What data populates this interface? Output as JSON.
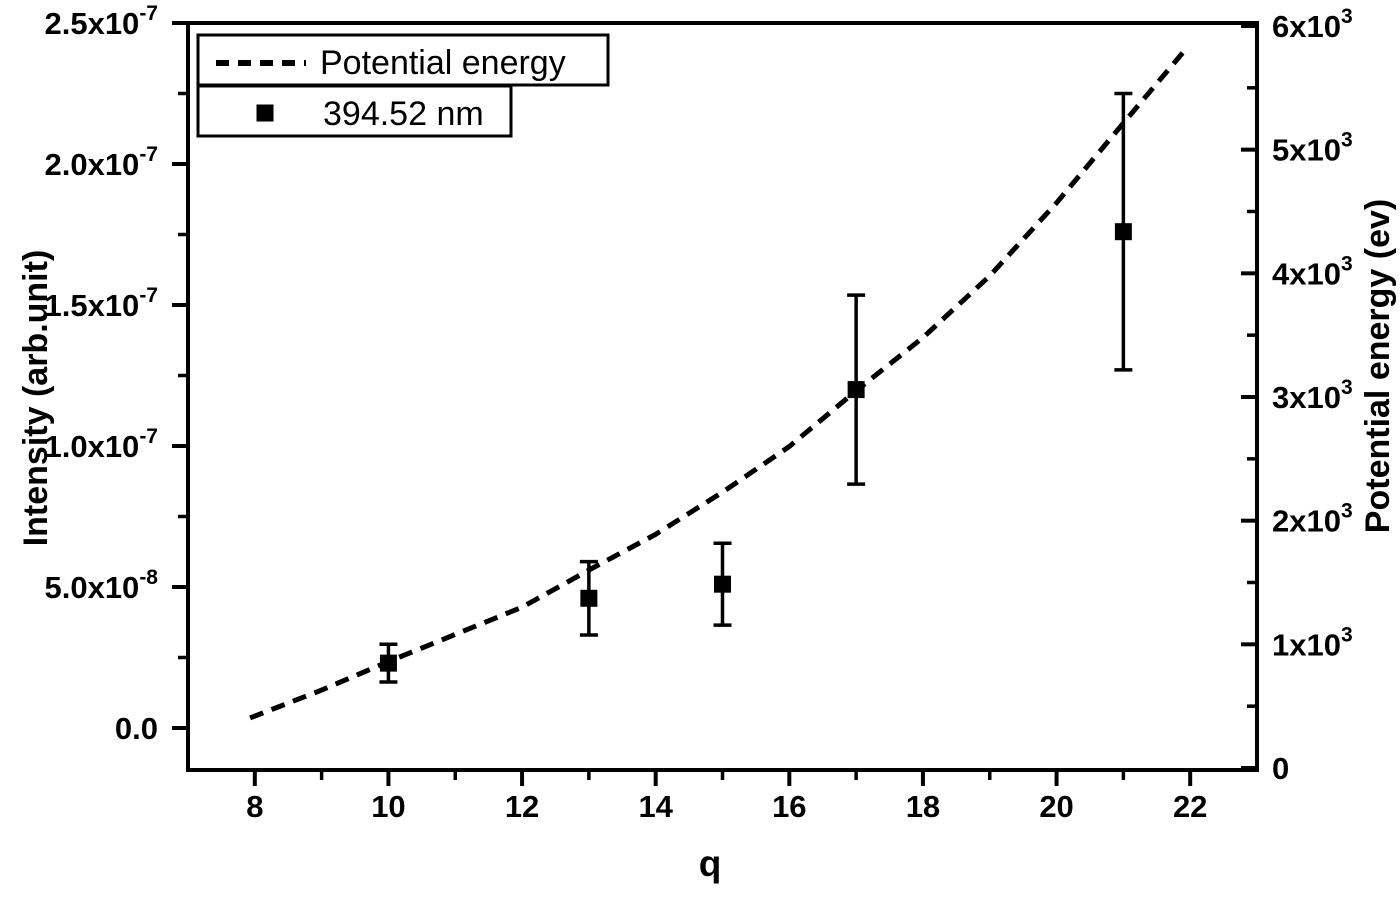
{
  "figure": {
    "background": "#ffffff",
    "ink": "#000000"
  },
  "legend": {
    "position": "top-left",
    "entries": [
      {
        "sample": "dashed-line",
        "label": "Potential energy"
      },
      {
        "sample": "filled-square",
        "label": "394.52 nm"
      }
    ]
  },
  "chart_data": {
    "type": "line+scatter",
    "title": "",
    "xlabel": "q",
    "ylabel_left": "Intensity (arb.unit)",
    "ylabel_right": "Potential energy (ev)",
    "xlim": [
      7,
      23
    ],
    "ylim_left": [
      -1.5e-08,
      2.5e-07
    ],
    "ylim_right": [
      0,
      6000
    ],
    "grid": false,
    "legend_position": "top-left",
    "x_axis": {
      "major_ticks": [
        8,
        10,
        12,
        14,
        16,
        18,
        20,
        22
      ],
      "labels": [
        "8",
        "10",
        "12",
        "14",
        "16",
        "18",
        "20",
        "22"
      ],
      "minor_ticks": [
        9,
        11,
        13,
        15,
        17,
        19,
        21
      ]
    },
    "y_left_axis": {
      "major_ticks": [
        0,
        5e-08,
        1e-07,
        1.5e-07,
        2e-07,
        2.5e-07
      ],
      "labels": [
        "0.0",
        "5.0x10^-8",
        "1.0x10^-7",
        "1.5x10^-7",
        "2.0x10^-7",
        "2.5x10^-7"
      ],
      "minor_ticks": [
        2.5e-08,
        7.5e-08,
        1.25e-07,
        1.75e-07,
        2.25e-07
      ]
    },
    "y_right_axis": {
      "major_ticks": [
        0,
        1000,
        2000,
        3000,
        4000,
        5000,
        6000
      ],
      "labels": [
        "0",
        "1x10^3",
        "2x10^3",
        "3x10^3",
        "4x10^3",
        "5x10^3",
        "6x10^3"
      ],
      "minor_ticks": [
        500,
        1500,
        2500,
        3500,
        4500,
        5500
      ]
    },
    "series": [
      {
        "name": "Potential energy",
        "type": "line",
        "style": "dashed",
        "y_axis": "right",
        "points_q_ev": [
          [
            7.93,
            405
          ],
          [
            9,
            630
          ],
          [
            10,
            860
          ],
          [
            11,
            1080
          ],
          [
            12,
            1300
          ],
          [
            13,
            1600
          ],
          [
            14,
            1890
          ],
          [
            15,
            2230
          ],
          [
            16,
            2600
          ],
          [
            17,
            3050
          ],
          [
            18,
            3480
          ],
          [
            19,
            3980
          ],
          [
            20,
            4570
          ],
          [
            21,
            5215
          ],
          [
            21.93,
            5810
          ]
        ]
      },
      {
        "name": "394.52 nm",
        "type": "scatter",
        "marker": "filled-square",
        "y_axis": "left",
        "points": [
          {
            "q": 10,
            "intensity": 2.3e-08,
            "error": 6.7e-09
          },
          {
            "q": 13,
            "intensity": 4.6e-08,
            "error": 1.3e-08
          },
          {
            "q": 15,
            "intensity": 5.1e-08,
            "error": 1.45e-08
          },
          {
            "q": 17,
            "intensity": 1.2e-07,
            "error": 3.35e-08
          },
          {
            "q": 21,
            "intensity": 1.76e-07,
            "error": 4.9e-08
          }
        ]
      }
    ]
  }
}
